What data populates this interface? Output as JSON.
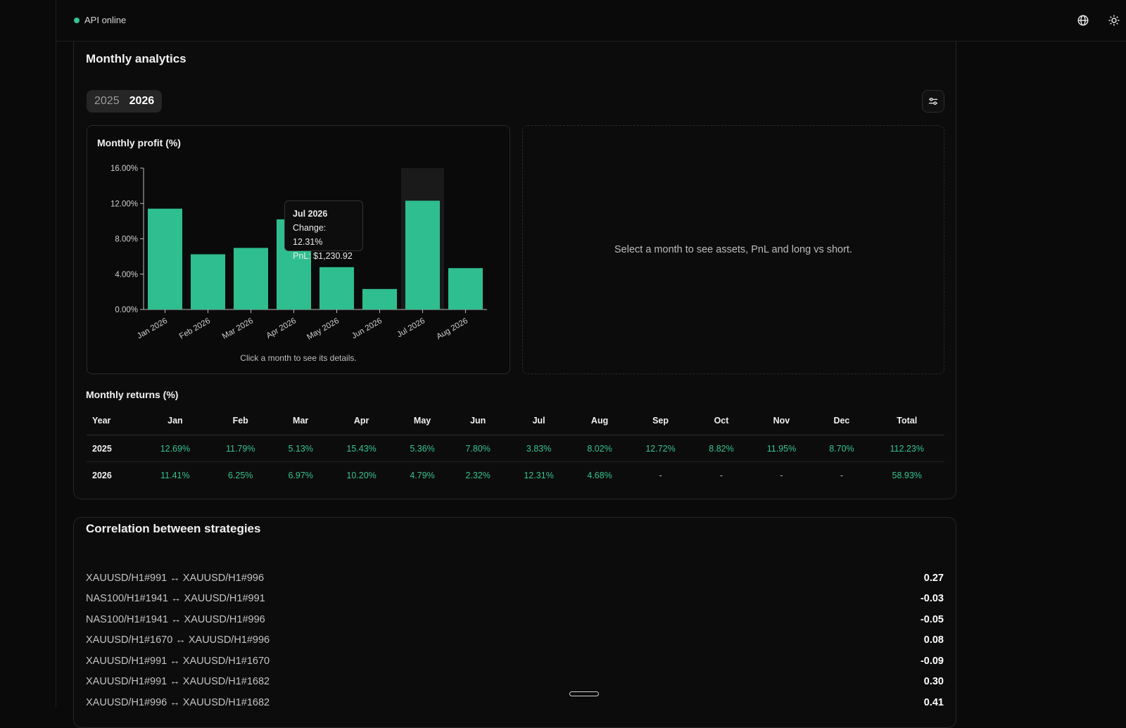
{
  "topbar": {
    "status_label": "API online",
    "icons": [
      "globe-icon",
      "sun-icon"
    ]
  },
  "analytics": {
    "title": "Monthly analytics",
    "years": [
      "2025",
      "2026"
    ],
    "selected_year": "2026",
    "filter_icon": "sliders-icon",
    "chart_title": "Monthly profit (%)",
    "chart_hint": "Click a month to see its details.",
    "detail_placeholder": "Select a month to see assets, PnL and long vs short.",
    "tooltip": {
      "title": "Jul 2026",
      "change": "Change: 12.31%",
      "pnl": "PnL: $1,230.92"
    },
    "colors": {
      "bar": "#2fbe8f",
      "positive": "#34c48f"
    }
  },
  "chart_data": {
    "type": "bar",
    "title": "Monthly profit (%)",
    "categories": [
      "Jan 2026",
      "Feb 2026",
      "Mar 2026",
      "Apr 2026",
      "May 2026",
      "Jun 2026",
      "Jul 2026",
      "Aug 2026"
    ],
    "values": [
      11.41,
      6.25,
      6.97,
      10.2,
      4.79,
      2.32,
      12.31,
      4.68
    ],
    "y_ticks": [
      "0.00%",
      "4.00%",
      "8.00%",
      "12.00%",
      "16.00%"
    ],
    "ylim": [
      0,
      16
    ],
    "highlighted": "Jul 2026",
    "grid": false
  },
  "returns": {
    "title": "Monthly returns (%)",
    "headers": [
      "Year",
      "Jan",
      "Feb",
      "Mar",
      "Apr",
      "May",
      "Jun",
      "Jul",
      "Aug",
      "Sep",
      "Oct",
      "Nov",
      "Dec",
      "Total"
    ],
    "rows": [
      [
        "2025",
        "12.69%",
        "11.79%",
        "5.13%",
        "15.43%",
        "5.36%",
        "7.80%",
        "3.83%",
        "8.02%",
        "12.72%",
        "8.82%",
        "11.95%",
        "8.70%",
        "112.23%"
      ],
      [
        "2026",
        "11.41%",
        "6.25%",
        "6.97%",
        "10.20%",
        "4.79%",
        "2.32%",
        "12.31%",
        "4.68%",
        "-",
        "-",
        "-",
        "-",
        "58.93%"
      ]
    ]
  },
  "correlation": {
    "title": "Correlation between strategies",
    "items": [
      {
        "pair": "XAUUSD/H1#991 ↔ XAUUSD/H1#996",
        "value": "0.27"
      },
      {
        "pair": "NAS100/H1#1941 ↔ XAUUSD/H1#991",
        "value": "-0.03"
      },
      {
        "pair": "NAS100/H1#1941 ↔ XAUUSD/H1#996",
        "value": "-0.05"
      },
      {
        "pair": "XAUUSD/H1#1670 ↔ XAUUSD/H1#996",
        "value": "0.08"
      },
      {
        "pair": "XAUUSD/H1#991 ↔ XAUUSD/H1#1670",
        "value": "-0.09"
      },
      {
        "pair": "XAUUSD/H1#991 ↔ XAUUSD/H1#1682",
        "value": "0.30"
      },
      {
        "pair": "XAUUSD/H1#996 ↔ XAUUSD/H1#1682",
        "value": "0.41"
      }
    ]
  }
}
